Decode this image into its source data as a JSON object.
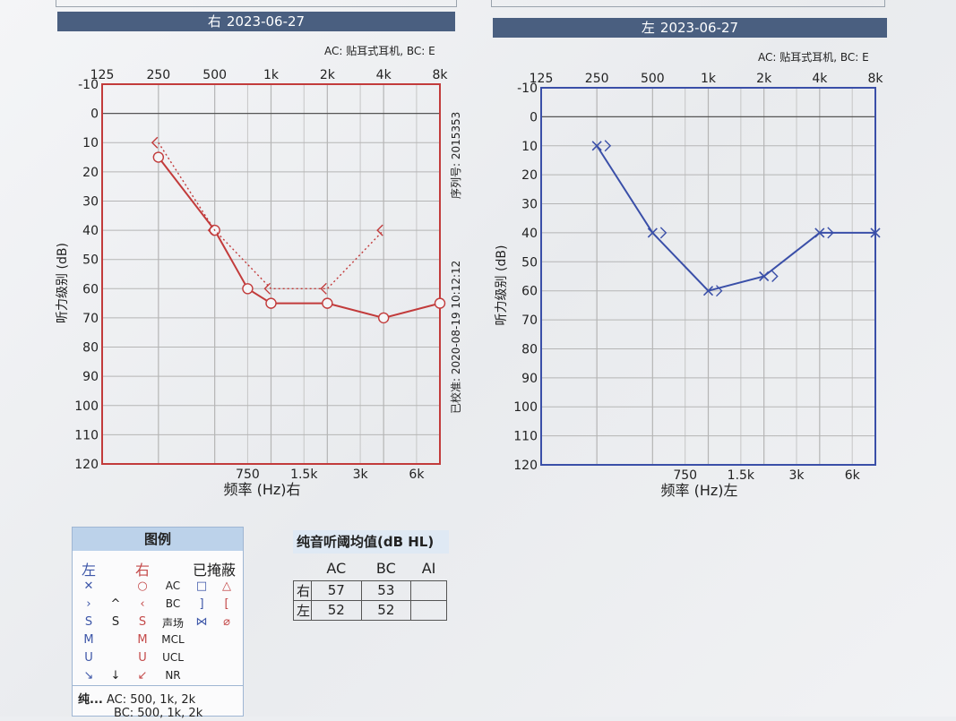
{
  "charts": {
    "right": {
      "side": "右",
      "date": "2023-06-27",
      "note": "AC: 贴耳式耳机, BC: E"
    },
    "left": {
      "side": "左",
      "date": "2023-06-27",
      "note": "AC: 贴耳式耳机, BC: E"
    }
  },
  "vertical_notes": {
    "serial": "序列号: 2015353",
    "calibrated": "已校准: 2020-08-19 10:12:12"
  },
  "colors": {
    "right": "#c23b3b",
    "left": "#3a4fa8",
    "header": "#4a5f80"
  },
  "chart_data": [
    {
      "type": "line",
      "title": "右 2023-06-27",
      "xlabel": "频率 (Hz)右",
      "ylabel": "听力级别 (dB)",
      "x_scale": "log",
      "x_ticks_top": [
        "125",
        "250",
        "500",
        "1k",
        "2k",
        "4k",
        "8k"
      ],
      "x_ticks_bottom": [
        "750",
        "1.5k",
        "3k",
        "6k"
      ],
      "y_ticks": [
        -10,
        0,
        10,
        20,
        30,
        40,
        50,
        60,
        70,
        80,
        90,
        100,
        110,
        120
      ],
      "ylim": [
        -10,
        120
      ],
      "y_inverted": true,
      "series": [
        {
          "name": "AC",
          "marker": "circle",
          "style": "solid",
          "x": [
            250,
            500,
            750,
            1000,
            2000,
            4000,
            8000
          ],
          "y": [
            15,
            40,
            60,
            65,
            65,
            70,
            65
          ]
        },
        {
          "name": "BC",
          "marker": "lt",
          "style": "dotted",
          "x": [
            250,
            500,
            1000,
            2000,
            4000
          ],
          "y": [
            10,
            40,
            60,
            60,
            40
          ]
        }
      ]
    },
    {
      "type": "line",
      "title": "左 2023-06-27",
      "xlabel": "频率 (Hz)左",
      "ylabel": "听力级别 (dB)",
      "x_scale": "log",
      "x_ticks_top": [
        "125",
        "250",
        "500",
        "1k",
        "2k",
        "4k",
        "8k"
      ],
      "x_ticks_bottom": [
        "750",
        "1.5k",
        "3k",
        "6k"
      ],
      "y_ticks": [
        -10,
        0,
        10,
        20,
        30,
        40,
        50,
        60,
        70,
        80,
        90,
        100,
        110,
        120
      ],
      "ylim": [
        -10,
        120
      ],
      "y_inverted": true,
      "series": [
        {
          "name": "AC",
          "marker": "x",
          "style": "solid",
          "x": [
            250,
            500,
            1000,
            2000,
            4000,
            8000
          ],
          "y": [
            10,
            40,
            60,
            55,
            40,
            40
          ]
        },
        {
          "name": "BC",
          "marker": "gt",
          "style": "none",
          "x": [
            250,
            500,
            1000,
            2000,
            4000
          ],
          "y": [
            10,
            40,
            60,
            55,
            40
          ]
        }
      ]
    }
  ],
  "legend": {
    "title": "图例",
    "head": {
      "left": "左",
      "right": "右",
      "masked": "已掩蔽"
    },
    "rows": [
      {
        "left": "✕",
        "mid": "",
        "right": "○",
        "label": "AC",
        "m1": "□",
        "m2": "△"
      },
      {
        "left": "›",
        "mid": "^",
        "right": "‹",
        "label": "BC",
        "m1": "]",
        "m2": "["
      },
      {
        "left": "S",
        "mid": "S",
        "right": "S",
        "label": "声场",
        "m1": "⋈",
        "m2": "⌀"
      },
      {
        "left": "M",
        "mid": "",
        "right": "M",
        "label": "MCL",
        "m1": "",
        "m2": ""
      },
      {
        "left": "U",
        "mid": "",
        "right": "U",
        "label": "UCL",
        "m1": "",
        "m2": ""
      },
      {
        "left": "↘",
        "mid": "↓",
        "right": "↙",
        "label": "NR",
        "m1": "",
        "m2": ""
      }
    ],
    "foot_title": "纯...",
    "foot_line1": "AC: 500, 1k, 2k",
    "foot_line2": "BC: 500, 1k, 2k"
  },
  "pta": {
    "title": "纯音听阈均值(dB HL)",
    "headers": [
      "AC",
      "BC",
      "AI"
    ],
    "rows": [
      {
        "label": "右",
        "ac": "57",
        "bc": "53",
        "ai": ""
      },
      {
        "label": "左",
        "ac": "52",
        "bc": "52",
        "ai": ""
      }
    ]
  }
}
